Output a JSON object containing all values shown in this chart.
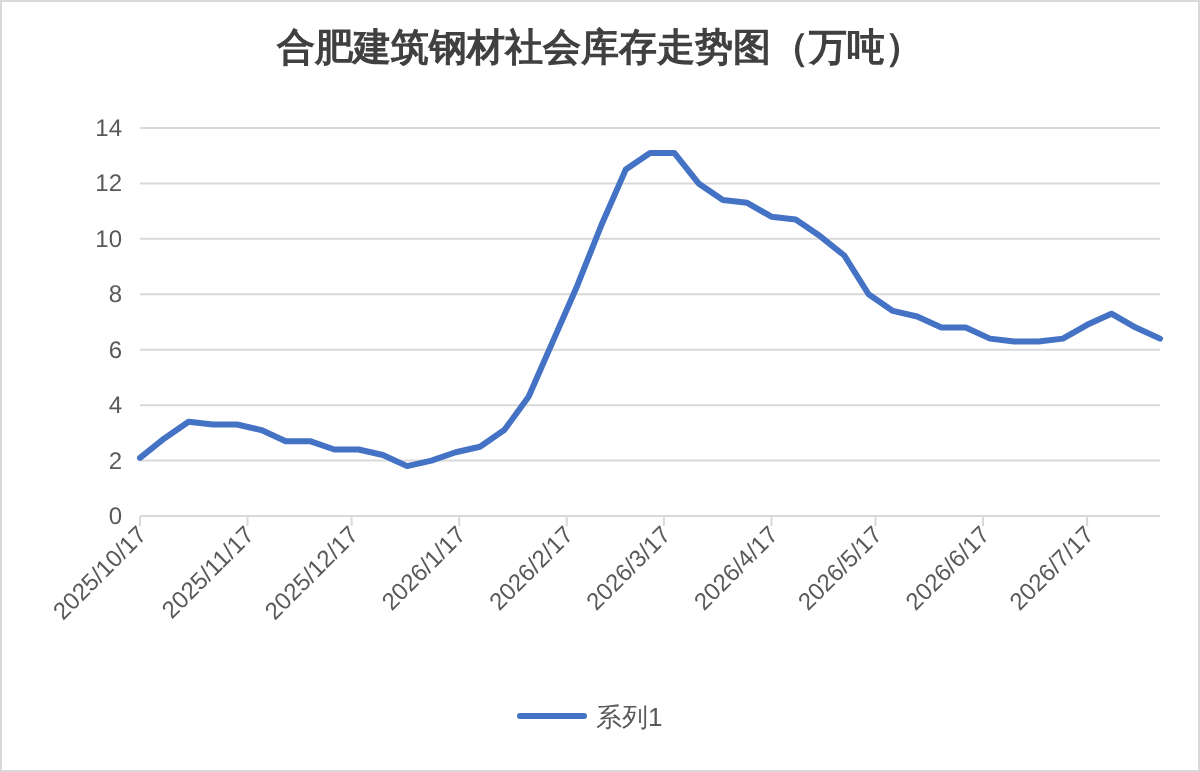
{
  "chart_data": {
    "type": "line",
    "title": "合肥建筑钢材社会库存走势图（万吨）",
    "x": [
      "2025-10-17",
      "2025-10-24",
      "2025-10-31",
      "2025-11-07",
      "2025-11-14",
      "2025-11-21",
      "2025-11-28",
      "2025-12-05",
      "2025-12-12",
      "2025-12-19",
      "2025-12-26",
      "2026-01-02",
      "2026-01-09",
      "2026-01-16",
      "2026-01-23",
      "2026-01-30",
      "2026-02-06",
      "2026-02-13",
      "2026-02-20",
      "2026-02-27",
      "2026-03-06",
      "2026-03-13",
      "2026-03-20",
      "2026-03-27",
      "2026-04-03",
      "2026-04-10",
      "2026-04-17",
      "2026-04-24",
      "2026-05-01",
      "2026-05-08",
      "2026-05-15",
      "2026-05-22",
      "2026-05-29",
      "2026-06-05",
      "2026-06-12",
      "2026-06-19",
      "2026-06-26",
      "2026-07-03",
      "2026-07-10",
      "2026-07-17",
      "2026-07-24",
      "2026-07-31",
      "2026-08-07"
    ],
    "series": [
      {
        "name": "系列1",
        "color": "#4472c4",
        "values": [
          2.1,
          2.8,
          3.4,
          3.3,
          3.3,
          3.1,
          2.7,
          2.7,
          2.4,
          2.4,
          2.2,
          1.8,
          2.0,
          2.3,
          2.5,
          3.1,
          4.3,
          6.3,
          8.3,
          10.5,
          12.5,
          13.1,
          13.1,
          12.0,
          11.4,
          11.3,
          10.8,
          10.7,
          10.1,
          9.4,
          8.0,
          7.4,
          7.2,
          6.8,
          6.8,
          6.4,
          6.3,
          6.3,
          6.4,
          6.9,
          7.3,
          6.8,
          6.4
        ]
      }
    ],
    "xlim": [
      "2025-10-17",
      "2026-08-07"
    ],
    "xticks": [
      {
        "value": "2025-10-17",
        "label": "2025/10/17"
      },
      {
        "value": "2025-11-17",
        "label": "2025/11/17"
      },
      {
        "value": "2025-12-17",
        "label": "2025/12/17"
      },
      {
        "value": "2026-01-17",
        "label": "2026/1/17"
      },
      {
        "value": "2026-02-17",
        "label": "2026/2/17"
      },
      {
        "value": "2026-03-17",
        "label": "2026/3/17"
      },
      {
        "value": "2026-04-17",
        "label": "2026/4/17"
      },
      {
        "value": "2026-05-17",
        "label": "2026/5/17"
      },
      {
        "value": "2026-06-17",
        "label": "2026/6/17"
      },
      {
        "value": "2026-07-17",
        "label": "2026/7/17"
      }
    ],
    "ylim": [
      0,
      14
    ],
    "yticks": [
      0,
      2,
      4,
      6,
      8,
      10,
      12,
      14
    ],
    "grid": "y",
    "legend": "bottom",
    "marker": "none",
    "line_style": "solid"
  }
}
